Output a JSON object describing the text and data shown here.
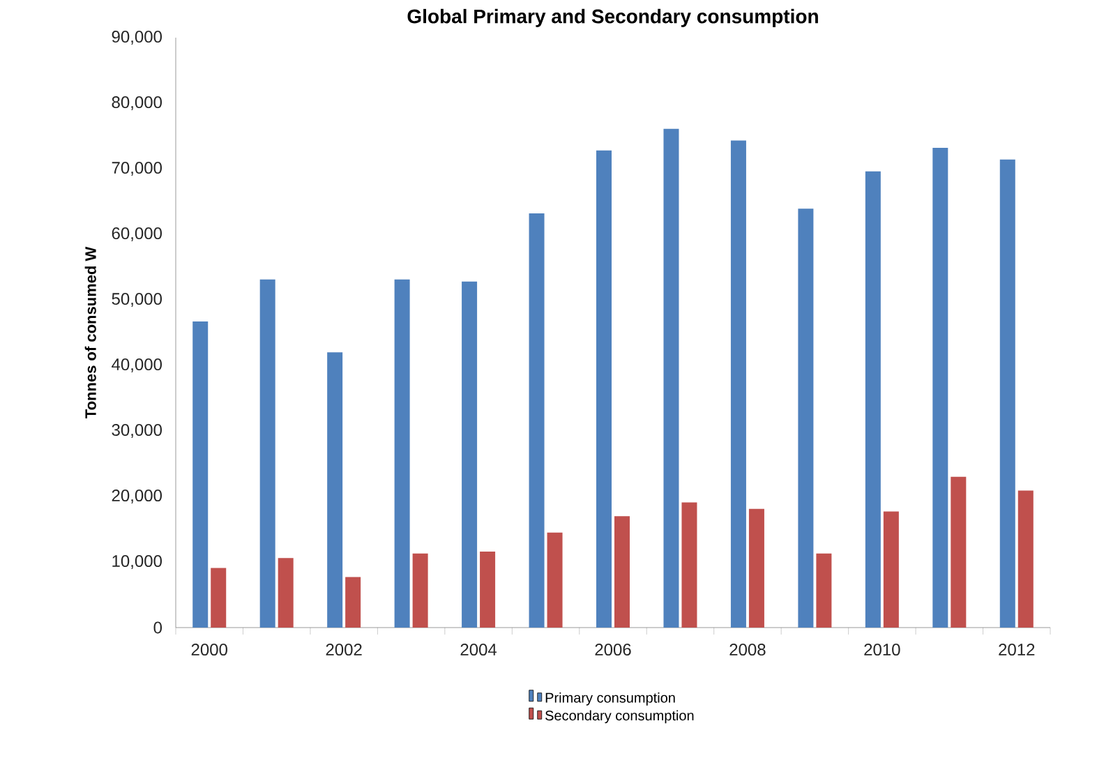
{
  "chart_data": {
    "type": "bar",
    "title": "Global Primary and Secondary consumption",
    "ylabel": "Tonnes of consumed W",
    "categories": [
      "2000",
      null,
      "2002",
      null,
      "2004",
      null,
      "2006",
      null,
      "2008",
      null,
      "2010",
      null,
      "2012"
    ],
    "series": [
      {
        "name": "Primary consumption",
        "color": "#4f81bd",
        "values": [
          46700,
          53100,
          42000,
          53100,
          52800,
          63200,
          72800,
          76100,
          74300,
          63900,
          69600,
          73200,
          71400
        ]
      },
      {
        "name": "Secondary consumption",
        "color": "#c0504d",
        "values": [
          9100,
          10600,
          7700,
          11300,
          11600,
          14500,
          17000,
          19100,
          18100,
          11300,
          17700,
          23000,
          20900
        ]
      }
    ],
    "ylim": [
      0,
      90000
    ],
    "yticks": [
      0,
      {
        "value": 10000,
        "label": "10,000"
      },
      {
        "value": 20000,
        "label": "20,000"
      },
      {
        "value": 30000,
        "label": "30,000"
      },
      {
        "value": 40000,
        "label": "40,000"
      },
      {
        "value": 50000,
        "label": "50,000"
      },
      {
        "value": 60000,
        "label": "60,000"
      },
      {
        "value": 70000,
        "label": "70,000"
      },
      {
        "value": 80000,
        "label": "80,000"
      },
      {
        "value": 90000,
        "label": "90,000"
      }
    ],
    "legend": "bottom",
    "grid": false
  }
}
